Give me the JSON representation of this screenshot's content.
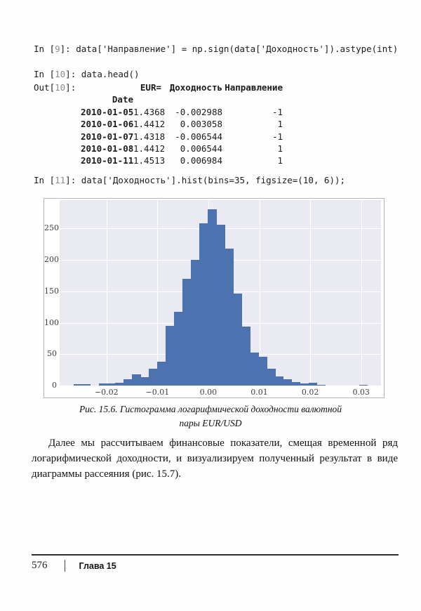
{
  "page": {
    "cells": [
      {
        "prompt_open": "In [",
        "prompt_num": "9",
        "prompt_close": "]: ",
        "code": "data['Направление'] = np.sign(data['Доходность']).astype(int)"
      },
      {
        "prompt_open": "In [",
        "prompt_num": "10",
        "prompt_close": "]: ",
        "code": "data.head()"
      },
      {
        "prompt_open": "In [",
        "prompt_num": "11",
        "prompt_close": "]: ",
        "code": "data['Доходность'].hist(bins=35, figsize=(10, 6));"
      }
    ],
    "out": {
      "prompt_open": "Out[",
      "prompt_num": "10",
      "prompt_close": "]:",
      "table": {
        "columns": [
          "EUR=",
          "Доходность",
          "Направление"
        ],
        "index_name": "Date",
        "rows": [
          {
            "date": "2010-01-05",
            "eur": "1.4368",
            "ret": "-0.002988",
            "dir": "-1"
          },
          {
            "date": "2010-01-06",
            "eur": "1.4412",
            "ret": "0.003058",
            "dir": "1"
          },
          {
            "date": "2010-01-07",
            "eur": "1.4318",
            "ret": "-0.006544",
            "dir": "-1"
          },
          {
            "date": "2010-01-08",
            "eur": "1.4412",
            "ret": "0.006544",
            "dir": "1"
          },
          {
            "date": "2010-01-11",
            "eur": "1.4513",
            "ret": "0.006984",
            "dir": "1"
          }
        ]
      }
    },
    "caption": {
      "line1": "Рис. 15.6. Гистограмма логарифмической доходности валютной",
      "line2": "пары EUR/USD"
    },
    "paragraph": "Далее мы рассчитываем финансовые показатели, смещая временной ряд логарифмической доходности, и визуализируем полученный результат в виде диаграммы рассеяния (рис. 15.7).",
    "footer": {
      "page_number": "576",
      "chapter": "Глава 15"
    }
  },
  "chart_data": {
    "type": "bar",
    "subtype": "histogram",
    "title": "",
    "xlabel": "",
    "ylabel": "",
    "bins": 35,
    "bin_start": -0.0265,
    "bin_width": 0.00165,
    "values": [
      2,
      2,
      0,
      3,
      3,
      5,
      10,
      18,
      13,
      27,
      38,
      95,
      117,
      170,
      200,
      258,
      281,
      256,
      218,
      146,
      94,
      53,
      46,
      27,
      15,
      10,
      6,
      3,
      4,
      1,
      0,
      0,
      0,
      0,
      1
    ],
    "xlim": [
      -0.0292,
      0.0339
    ],
    "ylim": [
      0,
      295
    ],
    "x_ticks": [
      -0.02,
      -0.01,
      0.0,
      0.01,
      0.02,
      0.03
    ],
    "x_tick_labels": [
      "−0.02",
      "−0.01",
      "0.00",
      "0.01",
      "0.02",
      "0.03"
    ],
    "y_ticks": [
      0,
      50,
      100,
      150,
      200,
      250
    ],
    "grid": true,
    "legend": false,
    "bar_color": "#4c72b0",
    "plot_bg": "#eaeaf2",
    "grid_color": "#ffffff"
  }
}
